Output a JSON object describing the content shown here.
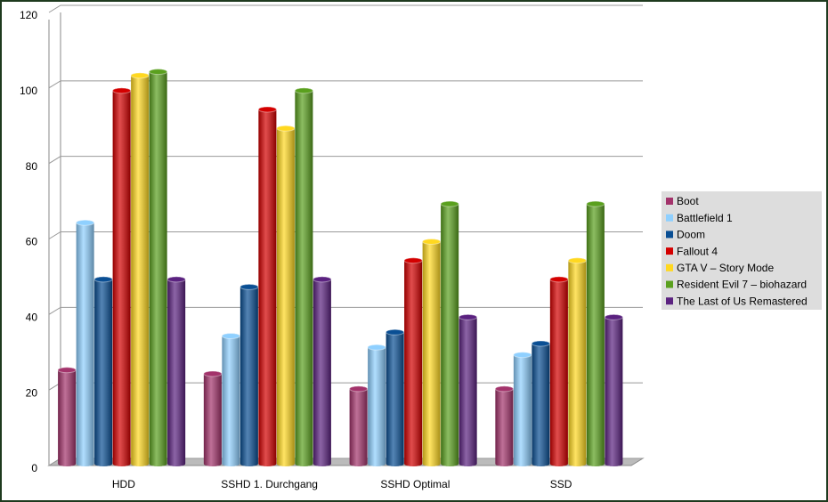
{
  "chart_data": {
    "type": "bar",
    "categories": [
      "HDD",
      "SSHD 1. Durchgang",
      "SSHD Optimal",
      "SSD"
    ],
    "series": [
      {
        "name": "Boot",
        "color": "#a3336b",
        "values": [
          26,
          25,
          21,
          21
        ]
      },
      {
        "name": "Battlefield 1",
        "color": "#8fd0ff",
        "values": [
          65,
          35,
          32,
          30
        ]
      },
      {
        "name": "Doom",
        "color": "#0a4f94",
        "values": [
          50,
          48,
          36,
          33
        ]
      },
      {
        "name": "Fallout 4",
        "color": "#d40000",
        "values": [
          100,
          95,
          55,
          50
        ]
      },
      {
        "name": "GTA V – Story Mode",
        "color": "#ffd820",
        "values": [
          104,
          90,
          60,
          55
        ]
      },
      {
        "name": "Resident Evil 7 – biohazard",
        "color": "#5aa01e",
        "values": [
          105,
          100,
          70,
          70
        ]
      },
      {
        "name": "The Last of Us Remastered",
        "color": "#5b2280",
        "values": [
          50,
          50,
          40,
          40
        ]
      }
    ],
    "ylim": [
      0,
      120
    ],
    "yticks": [
      0,
      20,
      40,
      60,
      80,
      100,
      120
    ],
    "grid": true,
    "legend": "right"
  }
}
